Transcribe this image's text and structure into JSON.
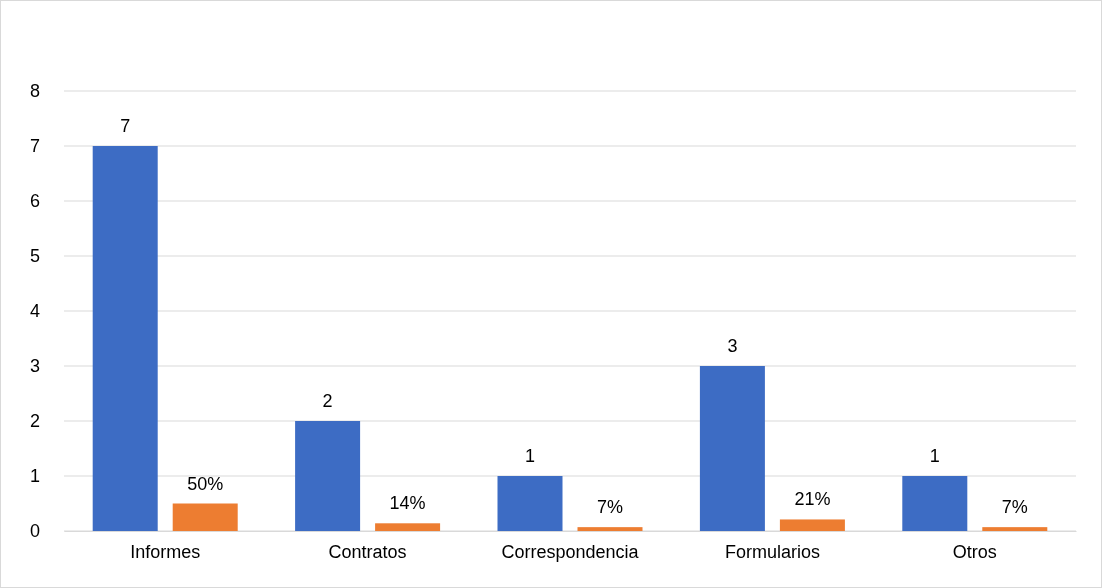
{
  "chart_data": {
    "type": "bar",
    "categories": [
      "Informes",
      "Contratos",
      "Correspondencia",
      "Formularios",
      "Otros"
    ],
    "series": [
      {
        "color": "#3d6cc4",
        "values": [
          7,
          2,
          1,
          3,
          1
        ],
        "value_labels": [
          "7",
          "2",
          "1",
          "3",
          "1"
        ]
      },
      {
        "color": "#ed7d31",
        "values": [
          0.5,
          0.14,
          0.07,
          0.21,
          0.07
        ],
        "value_labels": [
          "50%",
          "14%",
          "7%",
          "21%",
          "7%"
        ]
      }
    ],
    "ylim": [
      0,
      8
    ],
    "yticks": [
      0,
      1,
      2,
      3,
      4,
      5,
      6,
      7,
      8
    ],
    "grid": "y"
  }
}
